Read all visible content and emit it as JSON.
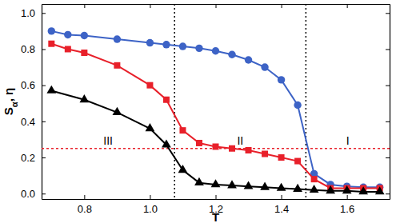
{
  "chart_data": {
    "type": "line",
    "x_label": "T",
    "y_label": "Sα, η",
    "xlim": [
      0.67,
      1.73
    ],
    "ylim": [
      -0.03,
      1.05
    ],
    "xticks": [
      0.8,
      {
        "value": 1,
        "label": "1.0"
      },
      1.2,
      1.4,
      1.6
    ],
    "yticks": [
      {
        "value": 0,
        "label": "0.0"
      },
      0.2,
      0.4,
      0.6,
      0.8,
      {
        "value": 1,
        "label": "1.0"
      }
    ],
    "reference_lines": {
      "x": [
        1.075,
        1.475
      ],
      "y": 0.25
    },
    "regions": [
      "III",
      "II",
      "I"
    ],
    "series": [
      {
        "color": "#3d63c6",
        "marker": "circle",
        "x": [
          0.7,
          0.75,
          0.8,
          0.9,
          1.0,
          1.05,
          1.1,
          1.15,
          1.2,
          1.25,
          1.3,
          1.35,
          1.4,
          1.45,
          1.5,
          1.55,
          1.6,
          1.65,
          1.7
        ],
        "values": [
          0.9,
          0.88,
          0.875,
          0.855,
          0.835,
          0.825,
          0.815,
          0.805,
          0.79,
          0.77,
          0.74,
          0.7,
          0.63,
          0.49,
          0.11,
          0.05,
          0.04,
          0.035,
          0.035
        ]
      },
      {
        "color": "#e8202a",
        "marker": "square",
        "x": [
          0.7,
          0.75,
          0.8,
          0.9,
          1.0,
          1.05,
          1.1,
          1.15,
          1.2,
          1.25,
          1.3,
          1.35,
          1.4,
          1.45,
          1.5,
          1.55,
          1.6,
          1.65,
          1.7
        ],
        "values": [
          0.83,
          0.8,
          0.78,
          0.71,
          0.6,
          0.52,
          0.35,
          0.28,
          0.26,
          0.25,
          0.24,
          0.22,
          0.2,
          0.18,
          0.08,
          0.03,
          0.03,
          0.03,
          0.03
        ]
      },
      {
        "color": "#000000",
        "marker": "triangle",
        "x": [
          0.7,
          0.8,
          0.9,
          1.0,
          1.05,
          1.1,
          1.15,
          1.2,
          1.25,
          1.3,
          1.35,
          1.4,
          1.45,
          1.5,
          1.55,
          1.6,
          1.65,
          1.7
        ],
        "values": [
          0.57,
          0.52,
          0.45,
          0.36,
          0.27,
          0.13,
          0.06,
          0.05,
          0.045,
          0.04,
          0.035,
          0.03,
          0.025,
          0.02,
          0.015,
          0.015,
          0.01,
          0.01
        ]
      }
    ]
  }
}
